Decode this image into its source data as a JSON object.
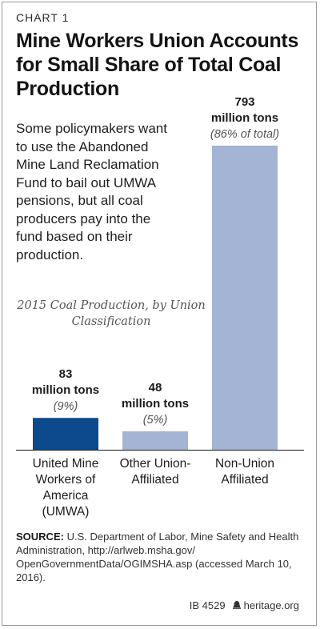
{
  "header": {
    "kicker": "CHART 1",
    "title": "Mine Workers Union Accounts for Small Share of Total Coal Production"
  },
  "description": "Some policymakers want to use the Abandoned Mine Land Reclamation Fund to bail out UMWA pensions, but all coal producers pay into the fund based on their production.",
  "chart_data": {
    "type": "bar",
    "title": "2015 Coal Production, by Union Classification",
    "categories": [
      [
        "United Mine",
        "Workers of",
        "America",
        "(UMWA)"
      ],
      [
        "Other Union-",
        "Affiliated"
      ],
      [
        "Non-Union",
        "Affiliated"
      ]
    ],
    "values": [
      83,
      48,
      793
    ],
    "value_labels": [
      [
        "83",
        "million tons"
      ],
      [
        "48",
        "million tons"
      ],
      [
        "793",
        "million tons"
      ]
    ],
    "percent_labels": [
      "(9%)",
      "(5%)",
      "(86% of total)"
    ],
    "colors": [
      "#0d4a8d",
      "#a3b4d4",
      "#a3b4d4"
    ],
    "unit": "million tons",
    "ylim": [
      0,
      793
    ],
    "grid": false,
    "legend": "none"
  },
  "footer": {
    "source_label": "SOURCE:",
    "source_text": "U.S. Department of Labor, Mine Safety and Health Administration, http://arlweb.msha.gov/ OpenGovernmentData/OGIMSHA.asp (accessed March 10, 2016).",
    "ib_code": "IB 4529",
    "site": "heritage.org",
    "logo_icon": "heritage-bell-icon"
  }
}
